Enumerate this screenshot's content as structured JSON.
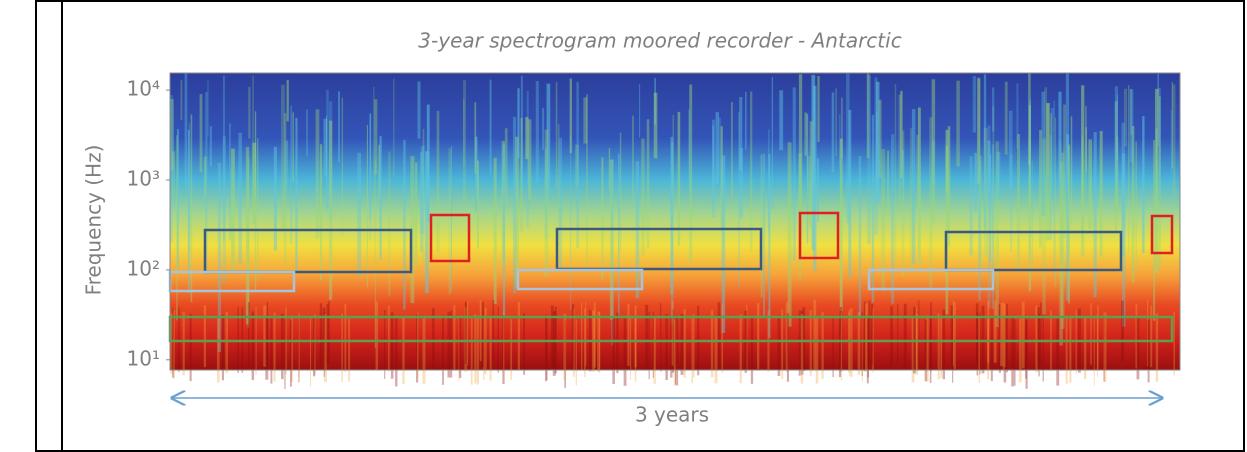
{
  "chart_data": {
    "type": "spectrogram",
    "title": "3-year spectrogram moored recorder - Antarctic",
    "y_label": "Frequency (Hz)",
    "x_label": "3 years",
    "yscale": "log",
    "ylim": [
      7.7,
      15500
    ],
    "yticks": [
      {
        "value": 10,
        "label": "10¹"
      },
      {
        "value": 100,
        "label": "10²"
      },
      {
        "value": 1000,
        "label": "10³"
      },
      {
        "value": 10000,
        "label": "10⁴"
      }
    ]
  }
}
